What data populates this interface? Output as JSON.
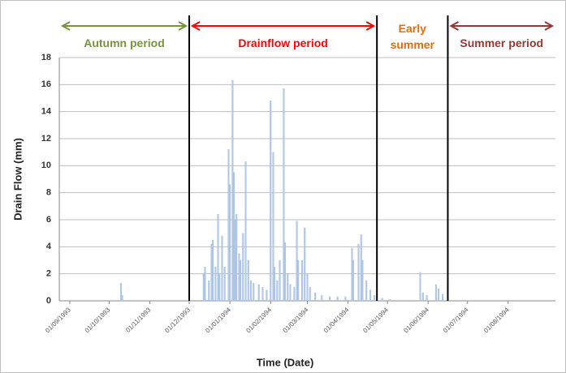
{
  "chart_data": {
    "type": "bar",
    "ylabel": "Drain Flow (mm)",
    "xlabel": "Time (Date)",
    "color": "#b4cbe8",
    "ylim": [
      0,
      18
    ],
    "yticks": [
      0,
      2,
      4,
      6,
      8,
      10,
      12,
      14,
      16,
      18
    ],
    "grid": true,
    "xlim": [
      "24/08/1993",
      "06/09/1994"
    ],
    "xticks": [
      "01/09/1993",
      "01/10/1993",
      "01/11/1993",
      "01/12/1993",
      "01/01/1994",
      "01/02/1994",
      "01/03/1994",
      "01/04/1994",
      "01/05/1994",
      "01/06/1994",
      "01/07/1994",
      "01/08/1994"
    ],
    "periods": [
      {
        "name": "Autumn period",
        "color": "#77933c",
        "start": "24/08/1993",
        "end": "01/12/1993",
        "arrow": true
      },
      {
        "name": "Drainflow period",
        "color": "#ff0000",
        "start": "01/12/1993",
        "end": "23/04/1994",
        "arrow": true
      },
      {
        "name": "Early summer",
        "color": "#e46c0a",
        "start": "23/04/1994",
        "end": "16/06/1994",
        "arrow": false
      },
      {
        "name": "Summer period",
        "color": "#953735",
        "start": "16/06/1994",
        "end": "06/09/1994",
        "arrow": true
      }
    ],
    "x": [
      "10/10/1993",
      "11/10/1993",
      "12/12/1993",
      "13/12/1993",
      "16/12/1993",
      "18/12/1993",
      "19/12/1993",
      "21/12/1993",
      "23/12/1993",
      "24/12/1993",
      "26/12/1993",
      "28/12/1993",
      "31/12/1993",
      "01/01/1994",
      "03/01/1994",
      "04/01/1994",
      "05/01/1994",
      "06/01/1994",
      "08/01/1994",
      "09/01/1994",
      "11/01/1994",
      "13/01/1994",
      "15/01/1994",
      "17/01/1994",
      "19/01/1994",
      "23/01/1994",
      "26/01/1994",
      "29/01/1994",
      "01/02/1994",
      "03/02/1994",
      "04/02/1994",
      "06/02/1994",
      "08/02/1994",
      "11/02/1994",
      "12/02/1994",
      "14/02/1994",
      "16/02/1994",
      "19/02/1994",
      "21/02/1994",
      "22/02/1994",
      "25/02/1994",
      "27/02/1994",
      "01/03/1994",
      "03/03/1994",
      "07/03/1994",
      "12/03/1994",
      "18/03/1994",
      "24/03/1994",
      "30/03/1994",
      "04/04/1994",
      "05/04/1994",
      "09/04/1994",
      "11/04/1994",
      "12/04/1994",
      "15/04/1994",
      "18/04/1994",
      "21/04/1994",
      "27/04/1994",
      "03/05/1994",
      "26/05/1994",
      "28/05/1994",
      "31/05/1994",
      "07/06/1994",
      "09/06/1994",
      "12/06/1994"
    ],
    "values": [
      1.3,
      0.4,
      2.0,
      2.5,
      1.5,
      4.2,
      4.5,
      2.5,
      6.4,
      2.0,
      4.8,
      2.5,
      11.2,
      8.6,
      16.3,
      9.5,
      6.0,
      6.4,
      3.5,
      3.0,
      5.0,
      10.3,
      3.0,
      1.5,
      1.3,
      1.2,
      1.0,
      0.8,
      14.8,
      11.0,
      2.5,
      1.5,
      3.0,
      15.7,
      4.3,
      2.0,
      1.2,
      1.0,
      5.9,
      3.0,
      3.0,
      5.4,
      2.0,
      1.0,
      0.6,
      0.4,
      0.3,
      0.3,
      0.3,
      3.9,
      3.0,
      4.2,
      4.9,
      3.0,
      1.5,
      0.8,
      0.4,
      0.2,
      0.1,
      2.1,
      0.6,
      0.4,
      1.2,
      0.9,
      0.5
    ]
  }
}
